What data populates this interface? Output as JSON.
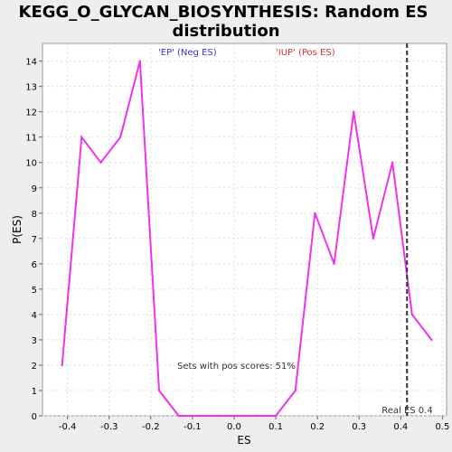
{
  "chart_data": {
    "type": "line",
    "title_line1": "KEGG_O_GLYCAN_BIOSYNTHESIS: Random ES",
    "title_line2": "distribution",
    "xlabel": "ES",
    "ylabel": "P(ES)",
    "xlim": [
      -0.46,
      0.51
    ],
    "ylim": [
      0,
      14.7
    ],
    "xticks": [
      -0.4,
      -0.3,
      -0.2,
      -0.1,
      0.0,
      0.1,
      0.2,
      0.3,
      0.4,
      0.5
    ],
    "xtick_labels": [
      "-0.4",
      "-0.3",
      "-0.2",
      "-0.1",
      "0.0",
      "0.1",
      "0.2",
      "0.3",
      "0.4",
      "0.5"
    ],
    "yticks": [
      0,
      1,
      2,
      3,
      4,
      5,
      6,
      7,
      8,
      9,
      10,
      11,
      12,
      13,
      14
    ],
    "ytick_labels": [
      "0",
      "1",
      "2",
      "3",
      "4",
      "5",
      "6",
      "7",
      "8",
      "9",
      "10",
      "11",
      "12",
      "13",
      "14"
    ],
    "grid": true,
    "series": [
      {
        "color": "#ee33ee",
        "x": [
          -0.413,
          -0.366,
          -0.32,
          -0.273,
          -0.226,
          -0.18,
          -0.133,
          -0.086,
          -0.039,
          0.007,
          0.054,
          0.1,
          0.147,
          0.194,
          0.24,
          0.287,
          0.334,
          0.38,
          0.427,
          0.474
        ],
        "y": [
          2,
          11,
          10,
          11,
          14,
          1,
          0,
          0,
          0,
          0,
          0,
          0,
          1,
          8,
          6,
          12,
          7,
          10,
          4,
          3
        ]
      }
    ],
    "real_es": {
      "x": 0.415,
      "label": "Real ES 0.4",
      "color": "#333333"
    },
    "annotations": {
      "neg_label": "'EP' (Neg ES)",
      "neg_color": "#3333cc",
      "pos_label": "'IUP' (Pos ES)",
      "pos_color": "#dd3333",
      "pos_score_text": "Sets with pos scores: 51%"
    }
  }
}
